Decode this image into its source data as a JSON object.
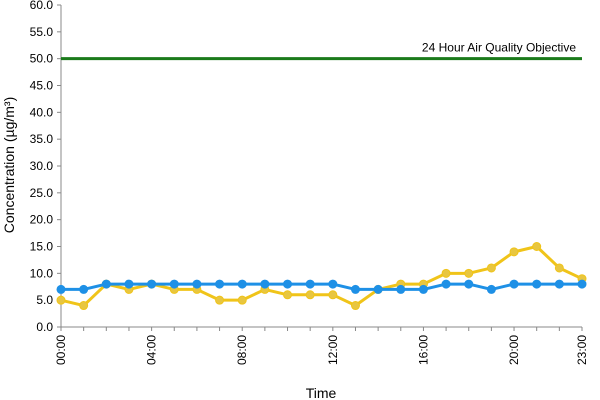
{
  "chart_data": {
    "type": "line",
    "title": "",
    "xlabel": "Time",
    "ylabel": "Concentration (µg/m³)",
    "ylim": [
      0,
      60
    ],
    "y_ticks": [
      "0.0",
      "5.0",
      "10.0",
      "15.0",
      "20.0",
      "25.0",
      "30.0",
      "35.0",
      "40.0",
      "45.0",
      "50.0",
      "55.0",
      "60.0"
    ],
    "x": [
      0,
      1,
      2,
      3,
      4,
      5,
      6,
      7,
      8,
      9,
      10,
      11,
      12,
      13,
      14,
      15,
      16,
      17,
      18,
      19,
      20,
      21,
      22,
      23
    ],
    "x_ticks": [
      {
        "x": 0,
        "label": "00:00"
      },
      {
        "x": 4,
        "label": "04:00"
      },
      {
        "x": 8,
        "label": "08:00"
      },
      {
        "x": 12,
        "label": "12:00"
      },
      {
        "x": 16,
        "label": "16:00"
      },
      {
        "x": 20,
        "label": "20:00"
      },
      {
        "x": 23,
        "label": "23:00"
      }
    ],
    "grid": false,
    "legend": "none",
    "series": [
      {
        "color": "#f0c419",
        "marker_color": "#e8c640",
        "values": [
          5,
          4,
          8,
          7,
          8,
          7,
          7,
          5,
          5,
          7,
          6,
          6,
          6,
          4,
          7,
          8,
          8,
          10,
          10,
          11,
          14,
          15,
          11,
          9
        ]
      },
      {
        "color": "#1e90e6",
        "marker_color": "#1e90e6",
        "values": [
          7,
          7,
          8,
          8,
          8,
          8,
          8,
          8,
          8,
          8,
          8,
          8,
          8,
          7,
          7,
          7,
          7,
          8,
          8,
          7,
          8,
          8,
          8,
          8
        ]
      }
    ],
    "reference_line": {
      "value": 50,
      "label": "24 Hour Air Quality Objective",
      "color": "#1a7a1a"
    }
  }
}
